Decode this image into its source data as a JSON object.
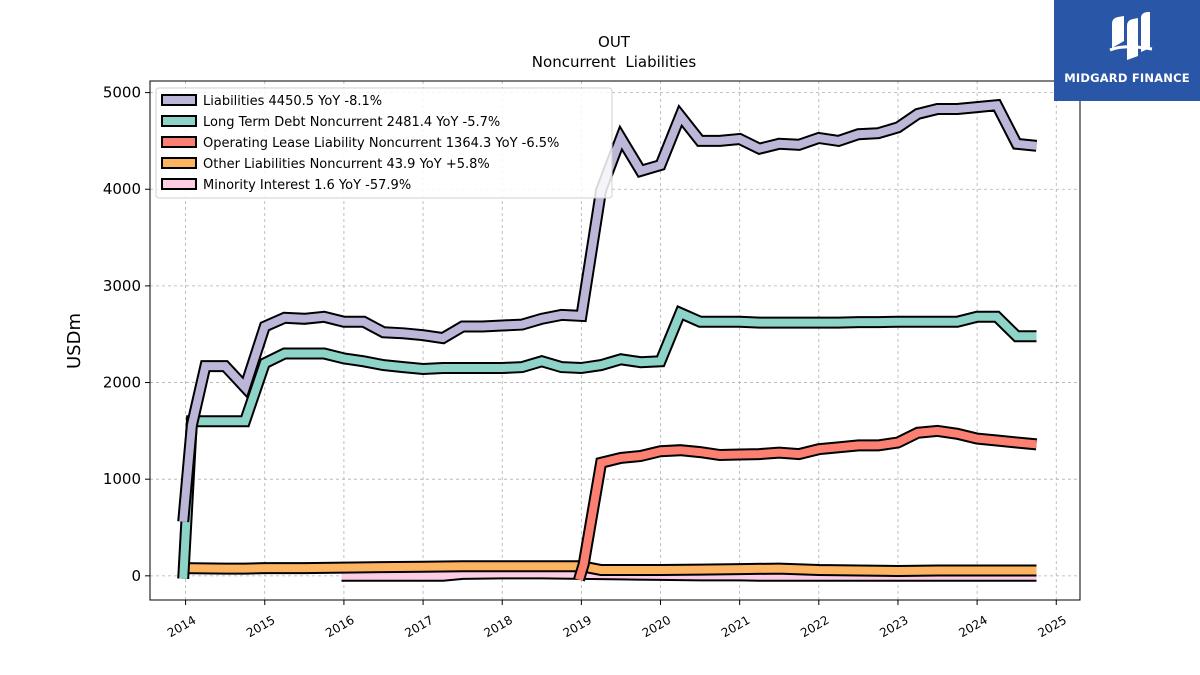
{
  "logo": {
    "text": "MIDGARD FINANCE",
    "background": "#2a56a7"
  },
  "chart_data": {
    "type": "line",
    "title": "OUT",
    "subtitle": "Noncurrent  Liabilities",
    "xlabel": "",
    "ylabel": "USDm",
    "xlim": [
      2013.55,
      2025.3
    ],
    "ylim": [
      -250,
      5120
    ],
    "xticks": [
      2014,
      2015,
      2016,
      2017,
      2018,
      2019,
      2020,
      2021,
      2022,
      2023,
      2024,
      2025
    ],
    "yticks": [
      0,
      1000,
      2000,
      3000,
      4000,
      5000
    ],
    "grid": true,
    "legend_position": "top-left",
    "series": [
      {
        "name": "Liabilities",
        "legend": "Liabilities  4450.5 YoY -8.1%",
        "color": "#bcb7d9",
        "x": [
          2013.97,
          2014.08,
          2014.25,
          2014.5,
          2014.75,
          2015.0,
          2015.25,
          2015.5,
          2015.75,
          2016.0,
          2016.25,
          2016.5,
          2016.75,
          2017.0,
          2017.25,
          2017.5,
          2017.75,
          2018.0,
          2018.25,
          2018.5,
          2018.75,
          2019.0,
          2019.25,
          2019.5,
          2019.75,
          2020.0,
          2020.25,
          2020.5,
          2020.75,
          2021.0,
          2021.25,
          2021.5,
          2021.75,
          2022.0,
          2022.25,
          2022.5,
          2022.75,
          2023.0,
          2023.25,
          2023.5,
          2023.75,
          2024.0,
          2024.25,
          2024.5,
          2024.75
        ],
        "y": [
          560,
          1560,
          2170,
          2170,
          1950,
          2580,
          2670,
          2660,
          2680,
          2630,
          2630,
          2520,
          2510,
          2490,
          2460,
          2580,
          2580,
          2590,
          2600,
          2660,
          2700,
          2690,
          3990,
          4530,
          4190,
          4250,
          4760,
          4500,
          4500,
          4520,
          4420,
          4470,
          4460,
          4530,
          4500,
          4570,
          4580,
          4640,
          4780,
          4830,
          4830,
          4850,
          4870,
          4470,
          4450
        ]
      },
      {
        "name": "Long Term Debt Noncurrent",
        "legend": "Long Term Debt Noncurrent  2481.4 YoY -5.7%",
        "color": "#8dd3c7",
        "x": [
          2013.97,
          2014.08,
          2014.25,
          2014.5,
          2014.75,
          2015.0,
          2015.25,
          2015.5,
          2015.75,
          2016.0,
          2016.25,
          2016.5,
          2016.75,
          2017.0,
          2017.25,
          2017.5,
          2017.75,
          2018.0,
          2018.25,
          2018.5,
          2018.75,
          2019.0,
          2019.25,
          2019.5,
          2019.75,
          2020.0,
          2020.25,
          2020.5,
          2020.75,
          2021.0,
          2021.25,
          2021.5,
          2021.75,
          2022.0,
          2022.25,
          2022.5,
          2022.75,
          2023.0,
          2023.25,
          2023.5,
          2023.75,
          2024.0,
          2024.25,
          2024.5,
          2024.75
        ],
        "y": [
          -30,
          1600,
          1600,
          1600,
          1600,
          2200,
          2300,
          2300,
          2300,
          2250,
          2220,
          2180,
          2160,
          2140,
          2150,
          2150,
          2150,
          2150,
          2160,
          2220,
          2160,
          2150,
          2180,
          2240,
          2210,
          2220,
          2720,
          2630,
          2630,
          2630,
          2620,
          2620,
          2620,
          2620,
          2620,
          2625,
          2625,
          2630,
          2630,
          2630,
          2630,
          2680,
          2680,
          2480,
          2480
        ]
      },
      {
        "name": "Operating Lease Liability Noncurrent",
        "legend": "Operating Lease Liability Noncurrent  1364.3 YoY -6.5%",
        "color": "#fb8072",
        "x": [
          2018.97,
          2019.03,
          2019.25,
          2019.5,
          2019.75,
          2020.0,
          2020.25,
          2020.5,
          2020.75,
          2021.0,
          2021.25,
          2021.5,
          2021.75,
          2022.0,
          2022.25,
          2022.5,
          2022.75,
          2023.0,
          2023.25,
          2023.5,
          2023.75,
          2024.0,
          2024.25,
          2024.5,
          2024.75
        ],
        "y": [
          -40,
          120,
          1170,
          1220,
          1240,
          1290,
          1300,
          1280,
          1250,
          1255,
          1260,
          1275,
          1260,
          1310,
          1330,
          1350,
          1350,
          1380,
          1480,
          1500,
          1470,
          1420,
          1400,
          1380,
          1360
        ]
      },
      {
        "name": "Other Liabilities Noncurrent",
        "legend": "Other Liabilities Noncurrent  43.9 YoY +5.8%",
        "color": "#fdb462",
        "x": [
          2013.97,
          2014.5,
          2014.75,
          2015.0,
          2015.5,
          2016.0,
          2016.5,
          2017.0,
          2017.5,
          2018.0,
          2018.5,
          2019.0,
          2019.25,
          2019.5,
          2020.0,
          2020.5,
          2021.0,
          2021.5,
          2022.0,
          2022.5,
          2023.0,
          2023.5,
          2024.0,
          2024.5,
          2024.75
        ],
        "y": [
          80,
          75,
          75,
          80,
          80,
          85,
          90,
          95,
          100,
          100,
          100,
          100,
          60,
          60,
          60,
          65,
          70,
          75,
          60,
          55,
          50,
          55,
          55,
          55,
          55
        ]
      },
      {
        "name": "Minority Interest",
        "legend": "Minority Interest  1.6 YoY -57.9%",
        "color": "#fccde5",
        "x": [
          2015.97,
          2016.5,
          2017.0,
          2017.25,
          2017.5,
          2018.0,
          2018.5,
          2019.0,
          2019.5,
          2020.0,
          2020.5,
          2021.0,
          2021.25,
          2021.5,
          2022.0,
          2022.5,
          2023.0,
          2023.5,
          2024.0,
          2024.5,
          2024.75
        ],
        "y": [
          0,
          0,
          0,
          0,
          20,
          25,
          25,
          20,
          15,
          10,
          5,
          5,
          0,
          0,
          0,
          0,
          0,
          0,
          0,
          0,
          0
        ]
      }
    ]
  }
}
